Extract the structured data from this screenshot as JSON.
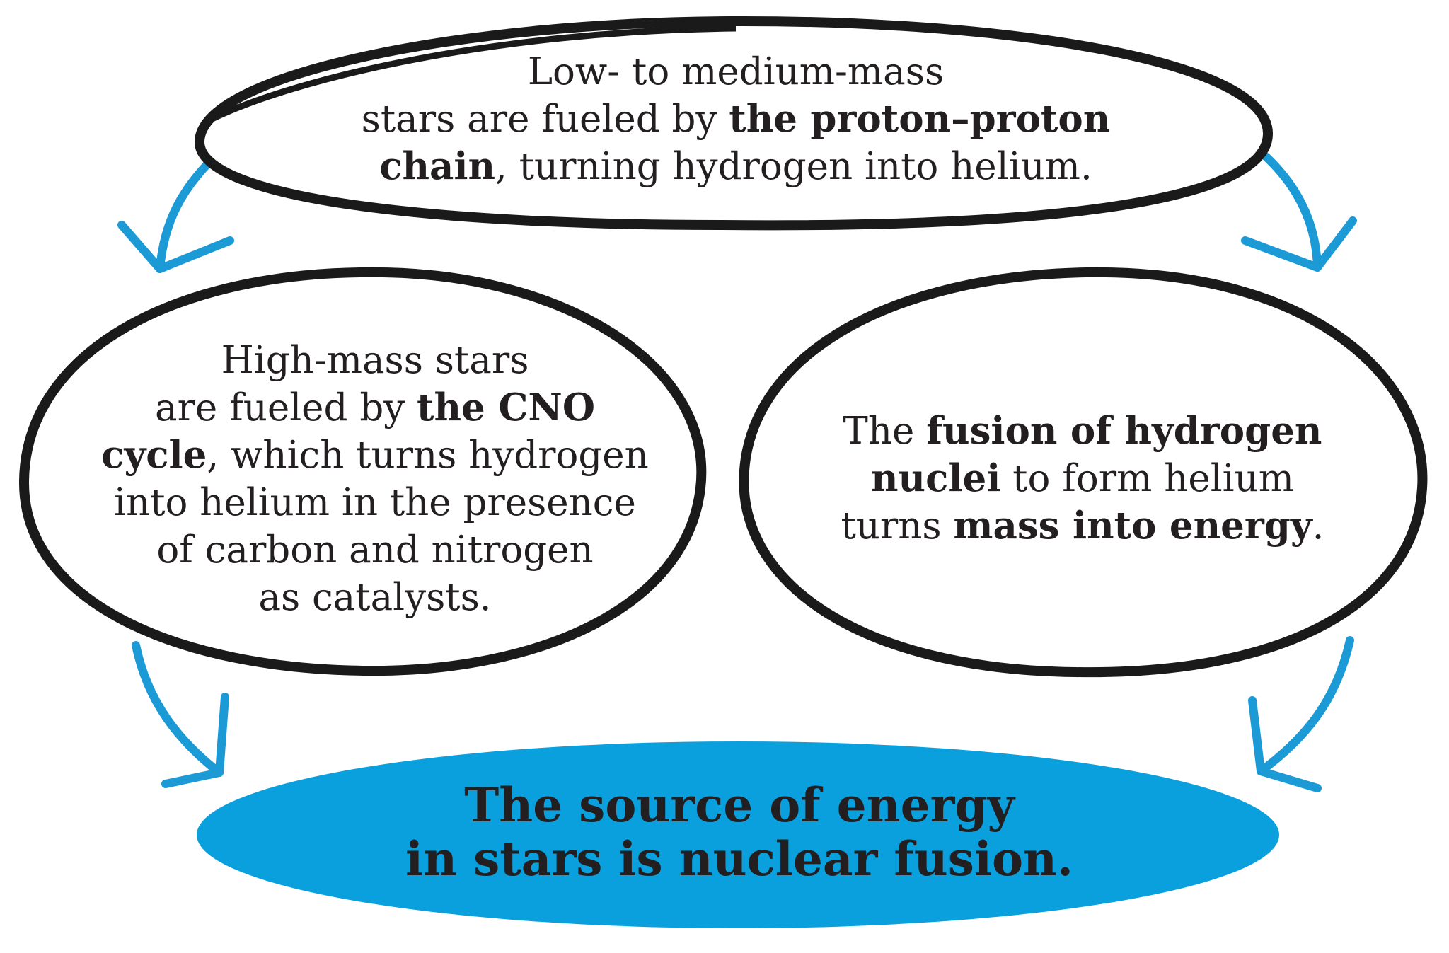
{
  "colors": {
    "outline": "#1a1a1a",
    "arrow": "#1b9ad6",
    "main_fill": "#0aa0dd",
    "text": "#231f20"
  },
  "top_node": {
    "line1": "Low- to medium-mass",
    "line2_pre": "stars are fueled by ",
    "line2_bold": "the proton–proton",
    "line3_bold": "chain",
    "line3_post": ", turning hydrogen into helium."
  },
  "left_node": {
    "line1": "High-mass stars",
    "line2_pre": "are fueled by ",
    "line2_bold": "the CNO",
    "line3_bold": "cycle",
    "line3_post": ", which turns hydrogen",
    "line4": "into helium in the presence",
    "line5": "of carbon and nitrogen",
    "line6": "as catalysts."
  },
  "right_node": {
    "line1_pre": "The ",
    "line1_bold": "fusion of hydrogen",
    "line2_bold": "nuclei",
    "line2_post": " to form helium",
    "line3_pre": "turns ",
    "line3_bold": "mass into energy",
    "line3_post": "."
  },
  "main_node": {
    "line1": "The source of energy",
    "line2": "in stars is nuclear fusion."
  }
}
